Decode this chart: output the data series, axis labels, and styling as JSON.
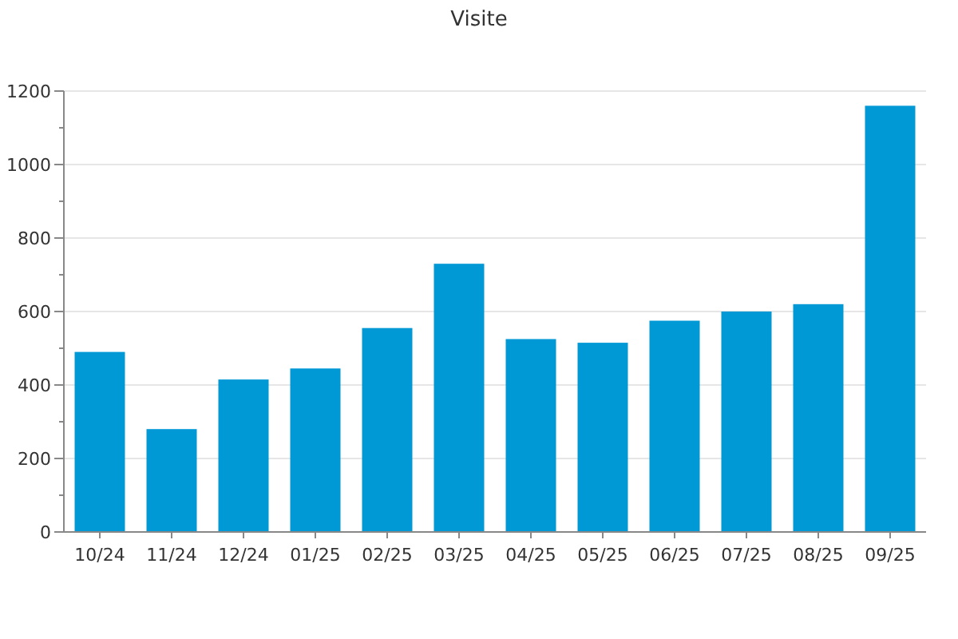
{
  "chart_data": {
    "type": "bar",
    "title": "Visite",
    "categories": [
      "10/24",
      "11/24",
      "12/24",
      "01/25",
      "02/25",
      "03/25",
      "04/25",
      "05/25",
      "06/25",
      "07/25",
      "08/25",
      "09/25"
    ],
    "values": [
      490,
      280,
      415,
      445,
      555,
      730,
      525,
      515,
      575,
      600,
      620,
      1160
    ],
    "color": "#0099d6",
    "ylim": [
      0,
      1200
    ],
    "yticks": [
      0,
      {
        "value": 100,
        "label": null
      },
      200,
      {
        "value": 300,
        "label": null
      },
      400,
      {
        "value": 500,
        "label": null
      },
      600,
      {
        "value": 700,
        "label": null
      },
      800,
      {
        "value": 900,
        "label": null
      },
      1000,
      {
        "value": 1100,
        "label": null
      },
      1200
    ],
    "grid": "y"
  }
}
